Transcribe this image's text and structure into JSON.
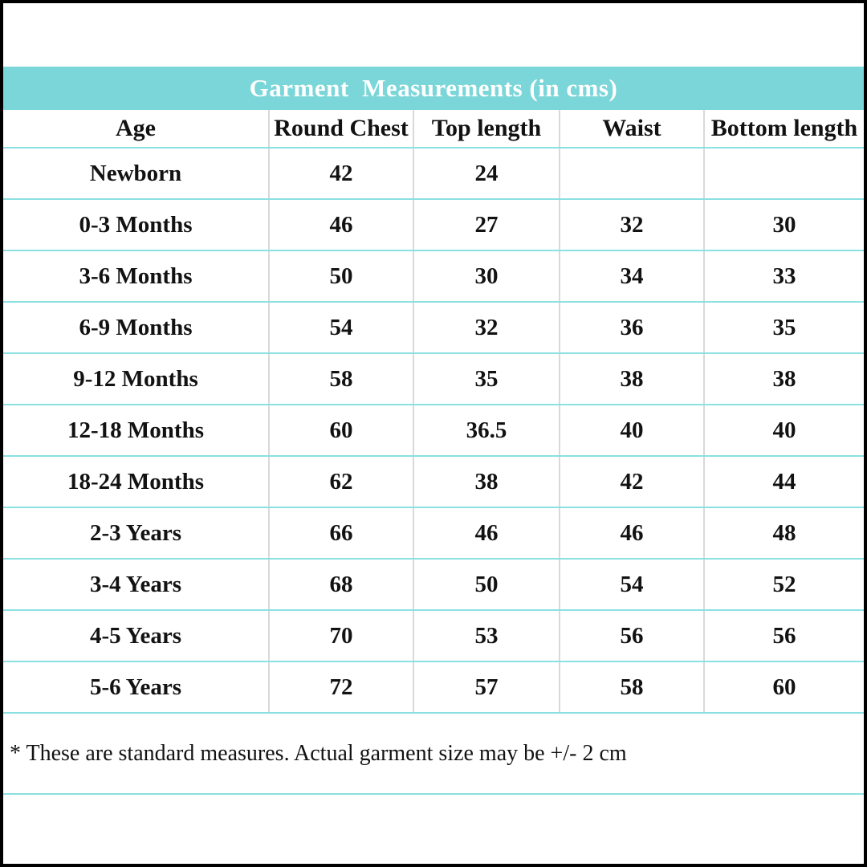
{
  "chart_data": {
    "type": "table",
    "title": "Garment  Measurements (in cms)",
    "units": "cms",
    "columns": [
      "Age",
      "Round Chest",
      "Top length",
      "Waist",
      "Bottom length"
    ],
    "rows": [
      [
        "Newborn",
        42,
        24,
        "",
        ""
      ],
      [
        "0-3 Months",
        46,
        27,
        32,
        30
      ],
      [
        "3-6 Months",
        50,
        30,
        34,
        33
      ],
      [
        "6-9 Months",
        54,
        32,
        36,
        35
      ],
      [
        "9-12 Months",
        58,
        35,
        38,
        38
      ],
      [
        "12-18 Months",
        60,
        36.5,
        40,
        40
      ],
      [
        "18-24 Months",
        62,
        38,
        42,
        44
      ],
      [
        "2-3 Years",
        66,
        46,
        46,
        48
      ],
      [
        "3-4 Years",
        68,
        50,
        54,
        52
      ],
      [
        "4-5 Years",
        70,
        53,
        56,
        56
      ],
      [
        "5-6 Years",
        72,
        57,
        58,
        60
      ]
    ],
    "footnote": "* These are standard measures. Actual garment size may be +/- 2 cm",
    "layout_hints": "title bar teal with white text, cyan horizontal row dividers, gray vertical column dividers, black outer frame"
  },
  "colors": {
    "title_bar_bg": "#7AD6D8",
    "title_text": "#FFFFFF",
    "row_divider": "#8BE0E2",
    "column_divider": "#D9D9D9",
    "text": "#121212",
    "frame_border": "#000000"
  }
}
